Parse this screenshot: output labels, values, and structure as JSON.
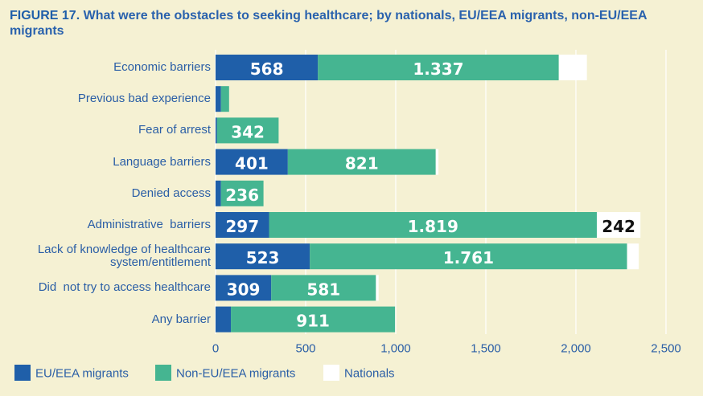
{
  "chart_data": {
    "type": "stacked-bar-horizontal",
    "figure_label": "FIGURE 17.",
    "title": "What were the obstacles to seeking healthcare; by nationals, EU/EEA migrants, non-EU/EEA migrants",
    "categories": [
      "Economic barriers",
      "Previous bad experience",
      "Fear of arrest",
      "Language barriers",
      "Denied access",
      "Administrative  barriers",
      "Lack of knowledge of healthcare system/entitlement",
      "Did  not try to access healthcare",
      "Any barrier"
    ],
    "series": [
      {
        "name": "EU/EEA migrants",
        "color": "#1f5fa9",
        "label_color": "#ffffff",
        "values": [
          568,
          30,
          8,
          401,
          30,
          297,
          523,
          309,
          85
        ],
        "value_labels": [
          "568",
          null,
          null,
          "401",
          null,
          "297",
          "523",
          "309",
          null
        ]
      },
      {
        "name": "Non-EU/EEA migrants",
        "color": "#45b591",
        "label_color": "#ffffff",
        "values": [
          1337,
          45,
          342,
          821,
          236,
          1819,
          1761,
          581,
          911
        ],
        "value_labels": [
          "1.337",
          null,
          "342",
          "821",
          "236",
          "1.819",
          "1.761",
          "581",
          "911"
        ]
      },
      {
        "name": "Nationals",
        "color": "#ffffff",
        "label_color": "#111111",
        "values": [
          156,
          0,
          0,
          15,
          0,
          242,
          65,
          15,
          0
        ],
        "value_labels": [
          null,
          null,
          null,
          null,
          null,
          "242",
          null,
          null,
          null
        ]
      }
    ],
    "xlim": [
      0,
      2500
    ],
    "xticks": [
      0,
      500,
      {
        "value": 1000,
        "label": "1,000"
      },
      {
        "value": 1500,
        "label": "1,500"
      },
      {
        "value": 2000,
        "label": "2,000"
      },
      {
        "value": 2500,
        "label": "2,500"
      }
    ],
    "grid": true
  }
}
